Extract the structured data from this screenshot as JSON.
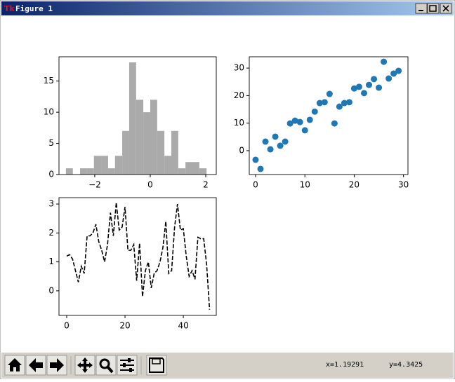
{
  "window": {
    "title": "Figure 1"
  },
  "chart_data": [
    {
      "type": "histogram",
      "color": "#aaaaaa",
      "bins": [
        -3.04,
        -2.79,
        -2.53,
        -2.28,
        -2.03,
        -1.77,
        -1.52,
        -1.27,
        -1.01,
        -0.76,
        -0.51,
        -0.25,
        0,
        0.25,
        0.51,
        0.76,
        1.01,
        1.27,
        1.52,
        1.77,
        2.03
      ],
      "values": [
        1,
        0,
        1,
        1,
        3,
        3,
        1,
        3,
        7,
        18,
        12,
        10,
        12,
        7,
        3,
        7,
        1,
        2,
        2,
        1
      ],
      "xlim": [
        -3.29,
        2.38
      ],
      "ylim": [
        0,
        18.9
      ],
      "xticks": [
        {
          "value": -2,
          "label": "−2"
        },
        0,
        2
      ],
      "yticks": [
        0,
        5,
        10,
        15
      ]
    },
    {
      "type": "scatter",
      "color": "#1f77b4",
      "x": [
        0,
        1,
        2,
        3,
        4,
        5,
        6,
        7,
        8,
        9,
        10,
        11,
        12,
        13,
        14,
        15,
        16,
        17,
        18,
        19,
        20,
        21,
        22,
        23,
        24,
        25,
        26,
        27,
        28,
        29
      ],
      "values": [
        -3.3,
        -6.6,
        3.3,
        0.5,
        5.1,
        1.8,
        3.3,
        9.9,
        10.9,
        10.4,
        7.4,
        11.2,
        14.2,
        17.3,
        17.6,
        20.6,
        9.9,
        16.0,
        17.3,
        17.6,
        22.6,
        23.2,
        20.9,
        23.9,
        26.0,
        22.9,
        32.3,
        26.2,
        28.0,
        29.0
      ],
      "xlim": [
        -1.28,
        30.9
      ],
      "ylim": [
        -8.65,
        34.1
      ],
      "xticks": [
        0,
        10,
        20,
        30
      ],
      "yticks": [
        0,
        10,
        20,
        30
      ]
    },
    {
      "type": "line",
      "color": "#000000",
      "linestyle": "dashed",
      "x": [
        0,
        1,
        2,
        3,
        4,
        5,
        6,
        7,
        8,
        9,
        10,
        11,
        12,
        13,
        14,
        15,
        16,
        17,
        18,
        19,
        20,
        21,
        22,
        23,
        24,
        25,
        26,
        27,
        28,
        29,
        30,
        31,
        32,
        33,
        34,
        35,
        36,
        37,
        38,
        39,
        40,
        41,
        42,
        43,
        44,
        45,
        46,
        47,
        48,
        49
      ],
      "values": [
        1.2,
        1.25,
        1.1,
        0.7,
        0.3,
        0.85,
        0.6,
        1.9,
        1.9,
        2.0,
        2.3,
        1.7,
        1.4,
        1.0,
        1.6,
        2.7,
        1.9,
        3.05,
        2.1,
        2.2,
        2.9,
        1.4,
        1.4,
        1.6,
        0.35,
        1.65,
        -0.2,
        0.7,
        1.0,
        0.1,
        0.6,
        0.7,
        1.0,
        1.5,
        2.4,
        0.6,
        0.7,
        2.2,
        3.0,
        2.1,
        2.15,
        1.2,
        0.5,
        0.7,
        0.4,
        1.85,
        1.8,
        1.8,
        0.9,
        -0.65
      ],
      "xlim": [
        -2.65,
        51.3
      ],
      "ylim": [
        -0.85,
        3.22
      ],
      "xticks": [
        0,
        20,
        40
      ],
      "yticks": [
        0,
        1,
        2,
        3
      ]
    }
  ],
  "status": {
    "x": "x=1.19291",
    "y": "y=4.3425"
  }
}
